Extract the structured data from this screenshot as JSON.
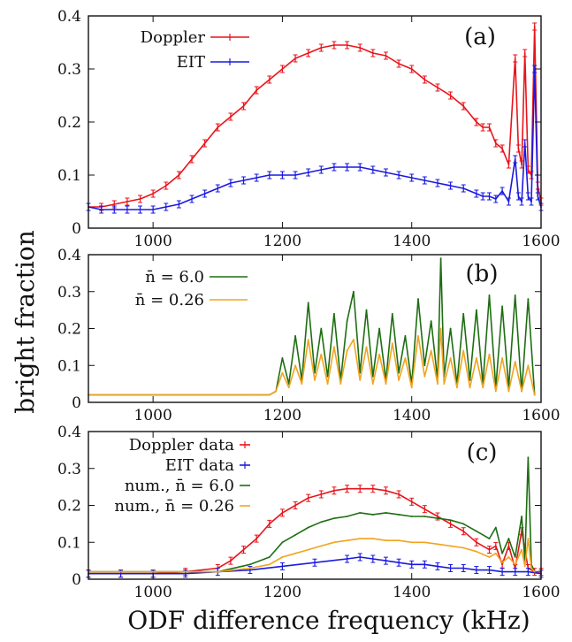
{
  "figure": {
    "ylabel": "bright fraction",
    "xlabel": "ODF difference frequency (kHz)"
  },
  "chart_data": [
    {
      "type": "line",
      "panel": "(a)",
      "xlim": [
        900,
        1600
      ],
      "ylim": [
        0,
        0.4
      ],
      "xticks": [
        "1000",
        "1200",
        "1400",
        "1600"
      ],
      "yticks": [
        "0",
        "0.1",
        "0.2",
        "0.3",
        "0.4"
      ],
      "legend_position": "top-left",
      "error_bars": true,
      "series": [
        {
          "name": "Doppler",
          "color": "#e8141b",
          "x": [
            900,
            920,
            940,
            960,
            980,
            1000,
            1020,
            1040,
            1060,
            1080,
            1100,
            1120,
            1140,
            1160,
            1180,
            1200,
            1220,
            1240,
            1260,
            1280,
            1300,
            1320,
            1340,
            1360,
            1380,
            1400,
            1420,
            1440,
            1460,
            1480,
            1500,
            1510,
            1520,
            1530,
            1540,
            1550,
            1560,
            1565,
            1570,
            1575,
            1580,
            1585,
            1590,
            1595,
            1600
          ],
          "y": [
            0.04,
            0.04,
            0.045,
            0.05,
            0.055,
            0.065,
            0.08,
            0.1,
            0.13,
            0.16,
            0.19,
            0.21,
            0.23,
            0.26,
            0.28,
            0.3,
            0.32,
            0.33,
            0.34,
            0.345,
            0.345,
            0.34,
            0.33,
            0.325,
            0.31,
            0.3,
            0.28,
            0.265,
            0.25,
            0.23,
            0.2,
            0.19,
            0.19,
            0.16,
            0.15,
            0.12,
            0.32,
            0.15,
            0.12,
            0.33,
            0.11,
            0.1,
            0.38,
            0.08,
            0.05
          ]
        },
        {
          "name": "EIT",
          "color": "#1a1ae0",
          "x": [
            900,
            920,
            940,
            960,
            980,
            1000,
            1020,
            1040,
            1060,
            1080,
            1100,
            1120,
            1140,
            1160,
            1180,
            1200,
            1220,
            1240,
            1260,
            1280,
            1300,
            1320,
            1340,
            1360,
            1380,
            1400,
            1420,
            1440,
            1460,
            1480,
            1500,
            1510,
            1520,
            1530,
            1540,
            1550,
            1560,
            1565,
            1570,
            1575,
            1580,
            1585,
            1590,
            1595,
            1600
          ],
          "y": [
            0.04,
            0.035,
            0.035,
            0.035,
            0.035,
            0.035,
            0.04,
            0.045,
            0.055,
            0.065,
            0.075,
            0.085,
            0.09,
            0.095,
            0.1,
            0.1,
            0.1,
            0.105,
            0.11,
            0.115,
            0.115,
            0.115,
            0.11,
            0.105,
            0.1,
            0.095,
            0.09,
            0.085,
            0.08,
            0.075,
            0.065,
            0.06,
            0.06,
            0.055,
            0.07,
            0.05,
            0.13,
            0.06,
            0.05,
            0.16,
            0.06,
            0.05,
            0.3,
            0.06,
            0.04
          ]
        }
      ]
    },
    {
      "type": "line",
      "panel": "(b)",
      "xlim": [
        900,
        1600
      ],
      "ylim": [
        0,
        0.4
      ],
      "xticks": [
        "1000",
        "1200",
        "1400",
        "1600"
      ],
      "yticks": [
        "0",
        "0.1",
        "0.2",
        "0.3",
        "0.4"
      ],
      "legend_position": "top-left",
      "series": [
        {
          "name": "n̄ = 6.0",
          "color": "#1e6e12",
          "x": [
            900,
            1150,
            1180,
            1190,
            1200,
            1210,
            1220,
            1230,
            1240,
            1250,
            1260,
            1270,
            1280,
            1290,
            1300,
            1310,
            1320,
            1330,
            1340,
            1350,
            1360,
            1370,
            1380,
            1390,
            1400,
            1410,
            1420,
            1430,
            1440,
            1445,
            1450,
            1460,
            1470,
            1480,
            1490,
            1500,
            1510,
            1520,
            1530,
            1540,
            1550,
            1560,
            1570,
            1580,
            1590
          ],
          "y": [
            0.02,
            0.02,
            0.02,
            0.03,
            0.12,
            0.05,
            0.18,
            0.06,
            0.27,
            0.08,
            0.2,
            0.07,
            0.24,
            0.06,
            0.22,
            0.3,
            0.08,
            0.25,
            0.07,
            0.2,
            0.06,
            0.24,
            0.08,
            0.18,
            0.05,
            0.28,
            0.1,
            0.22,
            0.06,
            0.39,
            0.07,
            0.2,
            0.05,
            0.24,
            0.06,
            0.25,
            0.05,
            0.29,
            0.04,
            0.26,
            0.04,
            0.29,
            0.03,
            0.28,
            0.02
          ]
        },
        {
          "name": "n̄ = 0.26",
          "color": "#f2a31f",
          "x": [
            900,
            1150,
            1180,
            1190,
            1200,
            1210,
            1220,
            1230,
            1240,
            1250,
            1260,
            1270,
            1280,
            1290,
            1300,
            1310,
            1320,
            1330,
            1340,
            1350,
            1360,
            1370,
            1380,
            1390,
            1400,
            1410,
            1420,
            1430,
            1440,
            1445,
            1450,
            1460,
            1470,
            1480,
            1490,
            1500,
            1510,
            1520,
            1530,
            1540,
            1550,
            1560,
            1570,
            1580,
            1590
          ],
          "y": [
            0.02,
            0.02,
            0.02,
            0.03,
            0.08,
            0.04,
            0.1,
            0.05,
            0.17,
            0.06,
            0.13,
            0.05,
            0.15,
            0.05,
            0.14,
            0.17,
            0.06,
            0.15,
            0.05,
            0.13,
            0.05,
            0.16,
            0.06,
            0.12,
            0.04,
            0.18,
            0.07,
            0.14,
            0.05,
            0.2,
            0.05,
            0.12,
            0.04,
            0.14,
            0.04,
            0.12,
            0.04,
            0.13,
            0.03,
            0.12,
            0.03,
            0.11,
            0.03,
            0.1,
            0.02
          ]
        }
      ]
    },
    {
      "type": "line",
      "panel": "(c)",
      "xlim": [
        900,
        1600
      ],
      "ylim": [
        0,
        0.4
      ],
      "xticks": [
        "1000",
        "1200",
        "1400",
        "1600"
      ],
      "yticks": [
        "0",
        "0.1",
        "0.2",
        "0.3",
        "0.4"
      ],
      "legend_position": "top-left",
      "series": [
        {
          "name": "Doppler data",
          "color": "#e8141b",
          "error_bars": true,
          "x": [
            900,
            950,
            1000,
            1050,
            1100,
            1120,
            1140,
            1160,
            1180,
            1200,
            1220,
            1240,
            1260,
            1280,
            1300,
            1320,
            1340,
            1360,
            1380,
            1400,
            1420,
            1440,
            1460,
            1480,
            1500,
            1520,
            1530,
            1540,
            1550,
            1560,
            1570,
            1580,
            1590,
            1600
          ],
          "y": [
            0.015,
            0.015,
            0.015,
            0.02,
            0.03,
            0.05,
            0.08,
            0.11,
            0.15,
            0.18,
            0.2,
            0.22,
            0.23,
            0.24,
            0.245,
            0.245,
            0.245,
            0.24,
            0.23,
            0.21,
            0.19,
            0.17,
            0.15,
            0.13,
            0.1,
            0.08,
            0.09,
            0.04,
            0.09,
            0.03,
            0.13,
            0.03,
            0.02,
            0.02
          ]
        },
        {
          "name": "EIT data",
          "color": "#1a1ae0",
          "error_bars": true,
          "x": [
            900,
            950,
            1000,
            1050,
            1100,
            1150,
            1200,
            1250,
            1300,
            1320,
            1340,
            1360,
            1380,
            1400,
            1420,
            1440,
            1460,
            1480,
            1500,
            1520,
            1540,
            1560,
            1580,
            1600
          ],
          "y": [
            0.015,
            0.015,
            0.015,
            0.015,
            0.02,
            0.025,
            0.035,
            0.045,
            0.055,
            0.06,
            0.055,
            0.05,
            0.045,
            0.04,
            0.04,
            0.035,
            0.03,
            0.03,
            0.025,
            0.025,
            0.02,
            0.02,
            0.02,
            0.015
          ]
        },
        {
          "name": "num., n̄ = 6.0",
          "color": "#1e6e12",
          "x": [
            900,
            1100,
            1150,
            1180,
            1200,
            1220,
            1240,
            1260,
            1280,
            1300,
            1320,
            1340,
            1360,
            1380,
            1400,
            1420,
            1440,
            1460,
            1480,
            1500,
            1520,
            1530,
            1540,
            1550,
            1560,
            1570,
            1575,
            1580,
            1585,
            1590
          ],
          "y": [
            0.02,
            0.02,
            0.04,
            0.06,
            0.1,
            0.12,
            0.14,
            0.155,
            0.165,
            0.17,
            0.18,
            0.175,
            0.18,
            0.175,
            0.17,
            0.17,
            0.165,
            0.16,
            0.15,
            0.13,
            0.11,
            0.14,
            0.07,
            0.11,
            0.06,
            0.17,
            0.05,
            0.33,
            0.04,
            0.02
          ]
        },
        {
          "name": "num., n̄ = 0.26",
          "color": "#f2a31f",
          "x": [
            900,
            1100,
            1150,
            1180,
            1200,
            1220,
            1240,
            1260,
            1280,
            1300,
            1320,
            1340,
            1360,
            1380,
            1400,
            1420,
            1440,
            1460,
            1480,
            1500,
            1520,
            1530,
            1540,
            1550,
            1560,
            1570,
            1575,
            1580,
            1585,
            1590
          ],
          "y": [
            0.02,
            0.02,
            0.03,
            0.04,
            0.06,
            0.07,
            0.08,
            0.09,
            0.1,
            0.105,
            0.11,
            0.11,
            0.105,
            0.105,
            0.1,
            0.1,
            0.095,
            0.09,
            0.085,
            0.075,
            0.06,
            0.07,
            0.045,
            0.06,
            0.04,
            0.08,
            0.035,
            0.11,
            0.03,
            0.02
          ]
        }
      ]
    }
  ]
}
